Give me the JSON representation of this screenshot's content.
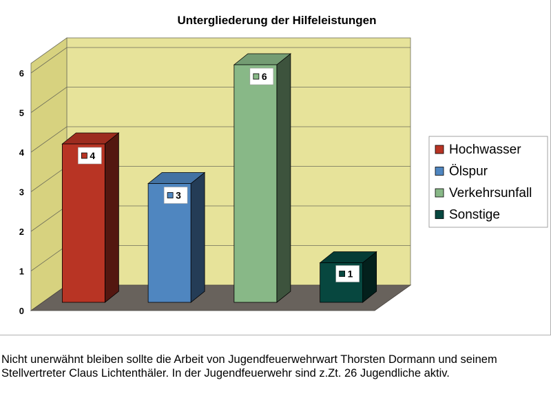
{
  "chart_data": {
    "type": "bar",
    "title": "Untergliederung der Hilfeleistungen",
    "categories": [
      "Hochwasser",
      "Ölspur",
      "Verkehrsunfall",
      "Sonstige"
    ],
    "values": [
      4,
      3,
      6,
      1
    ],
    "colors": [
      "#b83424",
      "#4f86c0",
      "#88b887",
      "#07473f"
    ],
    "yticks": [
      "0",
      "1",
      "2",
      "3",
      "4",
      "5",
      "6"
    ],
    "ylim": [
      0,
      6
    ],
    "grid": true,
    "legend": "right",
    "legend_entries": [
      "Hochwasser",
      "Ölspur",
      "Verkehrsunfall",
      "Sonstige"
    ],
    "data_labels": [
      "4",
      "3",
      "6",
      "1"
    ]
  },
  "caption": "Nicht unerwähnt bleiben sollte die Arbeit von Jugendfeuerwehrwart Thorsten Dormann und seinem Stellvertreter Claus Lichtenthäler. In der Jugendfeuerwehr sind z.Zt. 26 Jugendliche aktiv."
}
